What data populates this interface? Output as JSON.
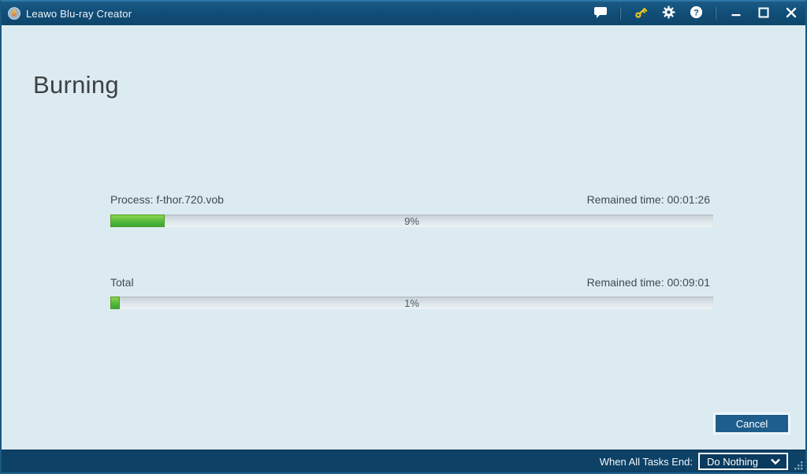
{
  "titlebar": {
    "app_title": "Leawo Blu-ray Creator",
    "help_glyph": "?"
  },
  "page": {
    "heading": "Burning"
  },
  "tasks": {
    "process": {
      "label": "Process: f-thor.720.vob",
      "remained": "Remained time: 00:01:26",
      "percent": 9,
      "percent_label": "9%"
    },
    "total": {
      "label": "Total",
      "remained": "Remained time: 00:09:01",
      "percent": 1,
      "percent_label": "1%"
    }
  },
  "actions": {
    "cancel_label": "Cancel"
  },
  "footer": {
    "when_all_tasks_end_label": "When All Tasks End:",
    "selected_option": "Do Nothing"
  },
  "icons": {
    "titlebar": [
      "speech-bubble",
      "key",
      "gear",
      "question-mark",
      "minimize",
      "maximize",
      "close"
    ],
    "dropdown": "chevron-down",
    "corner": "resize-grip"
  },
  "colors": {
    "titlebar_bg": "#114e78",
    "content_bg": "#dcebf1",
    "footer_bg": "#0d4166",
    "progress_green": "#45ad35",
    "cancel_button_bg": "#1e5e8c",
    "key_icon": "#e8c51e"
  }
}
